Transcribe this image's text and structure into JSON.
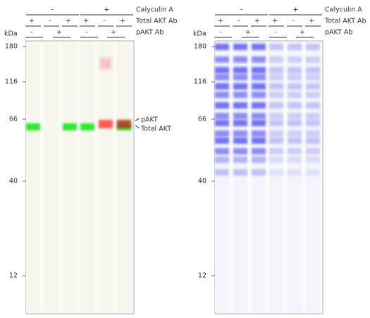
{
  "panels": [
    {
      "calyculin": {
        "label": "Calyculin A",
        "groups": [
          "-",
          "+"
        ]
      },
      "total_akt": {
        "label": "Total AKT Ab",
        "signs": [
          "+",
          "-",
          "+",
          "+",
          "-",
          "+"
        ]
      },
      "pakt": {
        "label": "pAKT Ab",
        "signs": [
          "-",
          "+",
          "-",
          "+"
        ]
      },
      "unit": "kDa",
      "markers": [
        "180",
        "116",
        "66",
        "40",
        "12"
      ]
    },
    {
      "calyculin": {
        "label": "Calyculin A",
        "groups": [
          "-",
          "+"
        ]
      },
      "total_akt": {
        "label": "Total AKT Ab",
        "signs": [
          "+",
          "-",
          "+",
          "+",
          "-",
          "+"
        ]
      },
      "pakt": {
        "label": "pAKT Ab",
        "signs": [
          "-",
          "+",
          "-",
          "+"
        ]
      },
      "unit": "kDa",
      "markers": [
        "180",
        "116",
        "66",
        "40",
        "12"
      ]
    }
  ],
  "annotations": [
    "pAKT",
    "Total AKT"
  ]
}
